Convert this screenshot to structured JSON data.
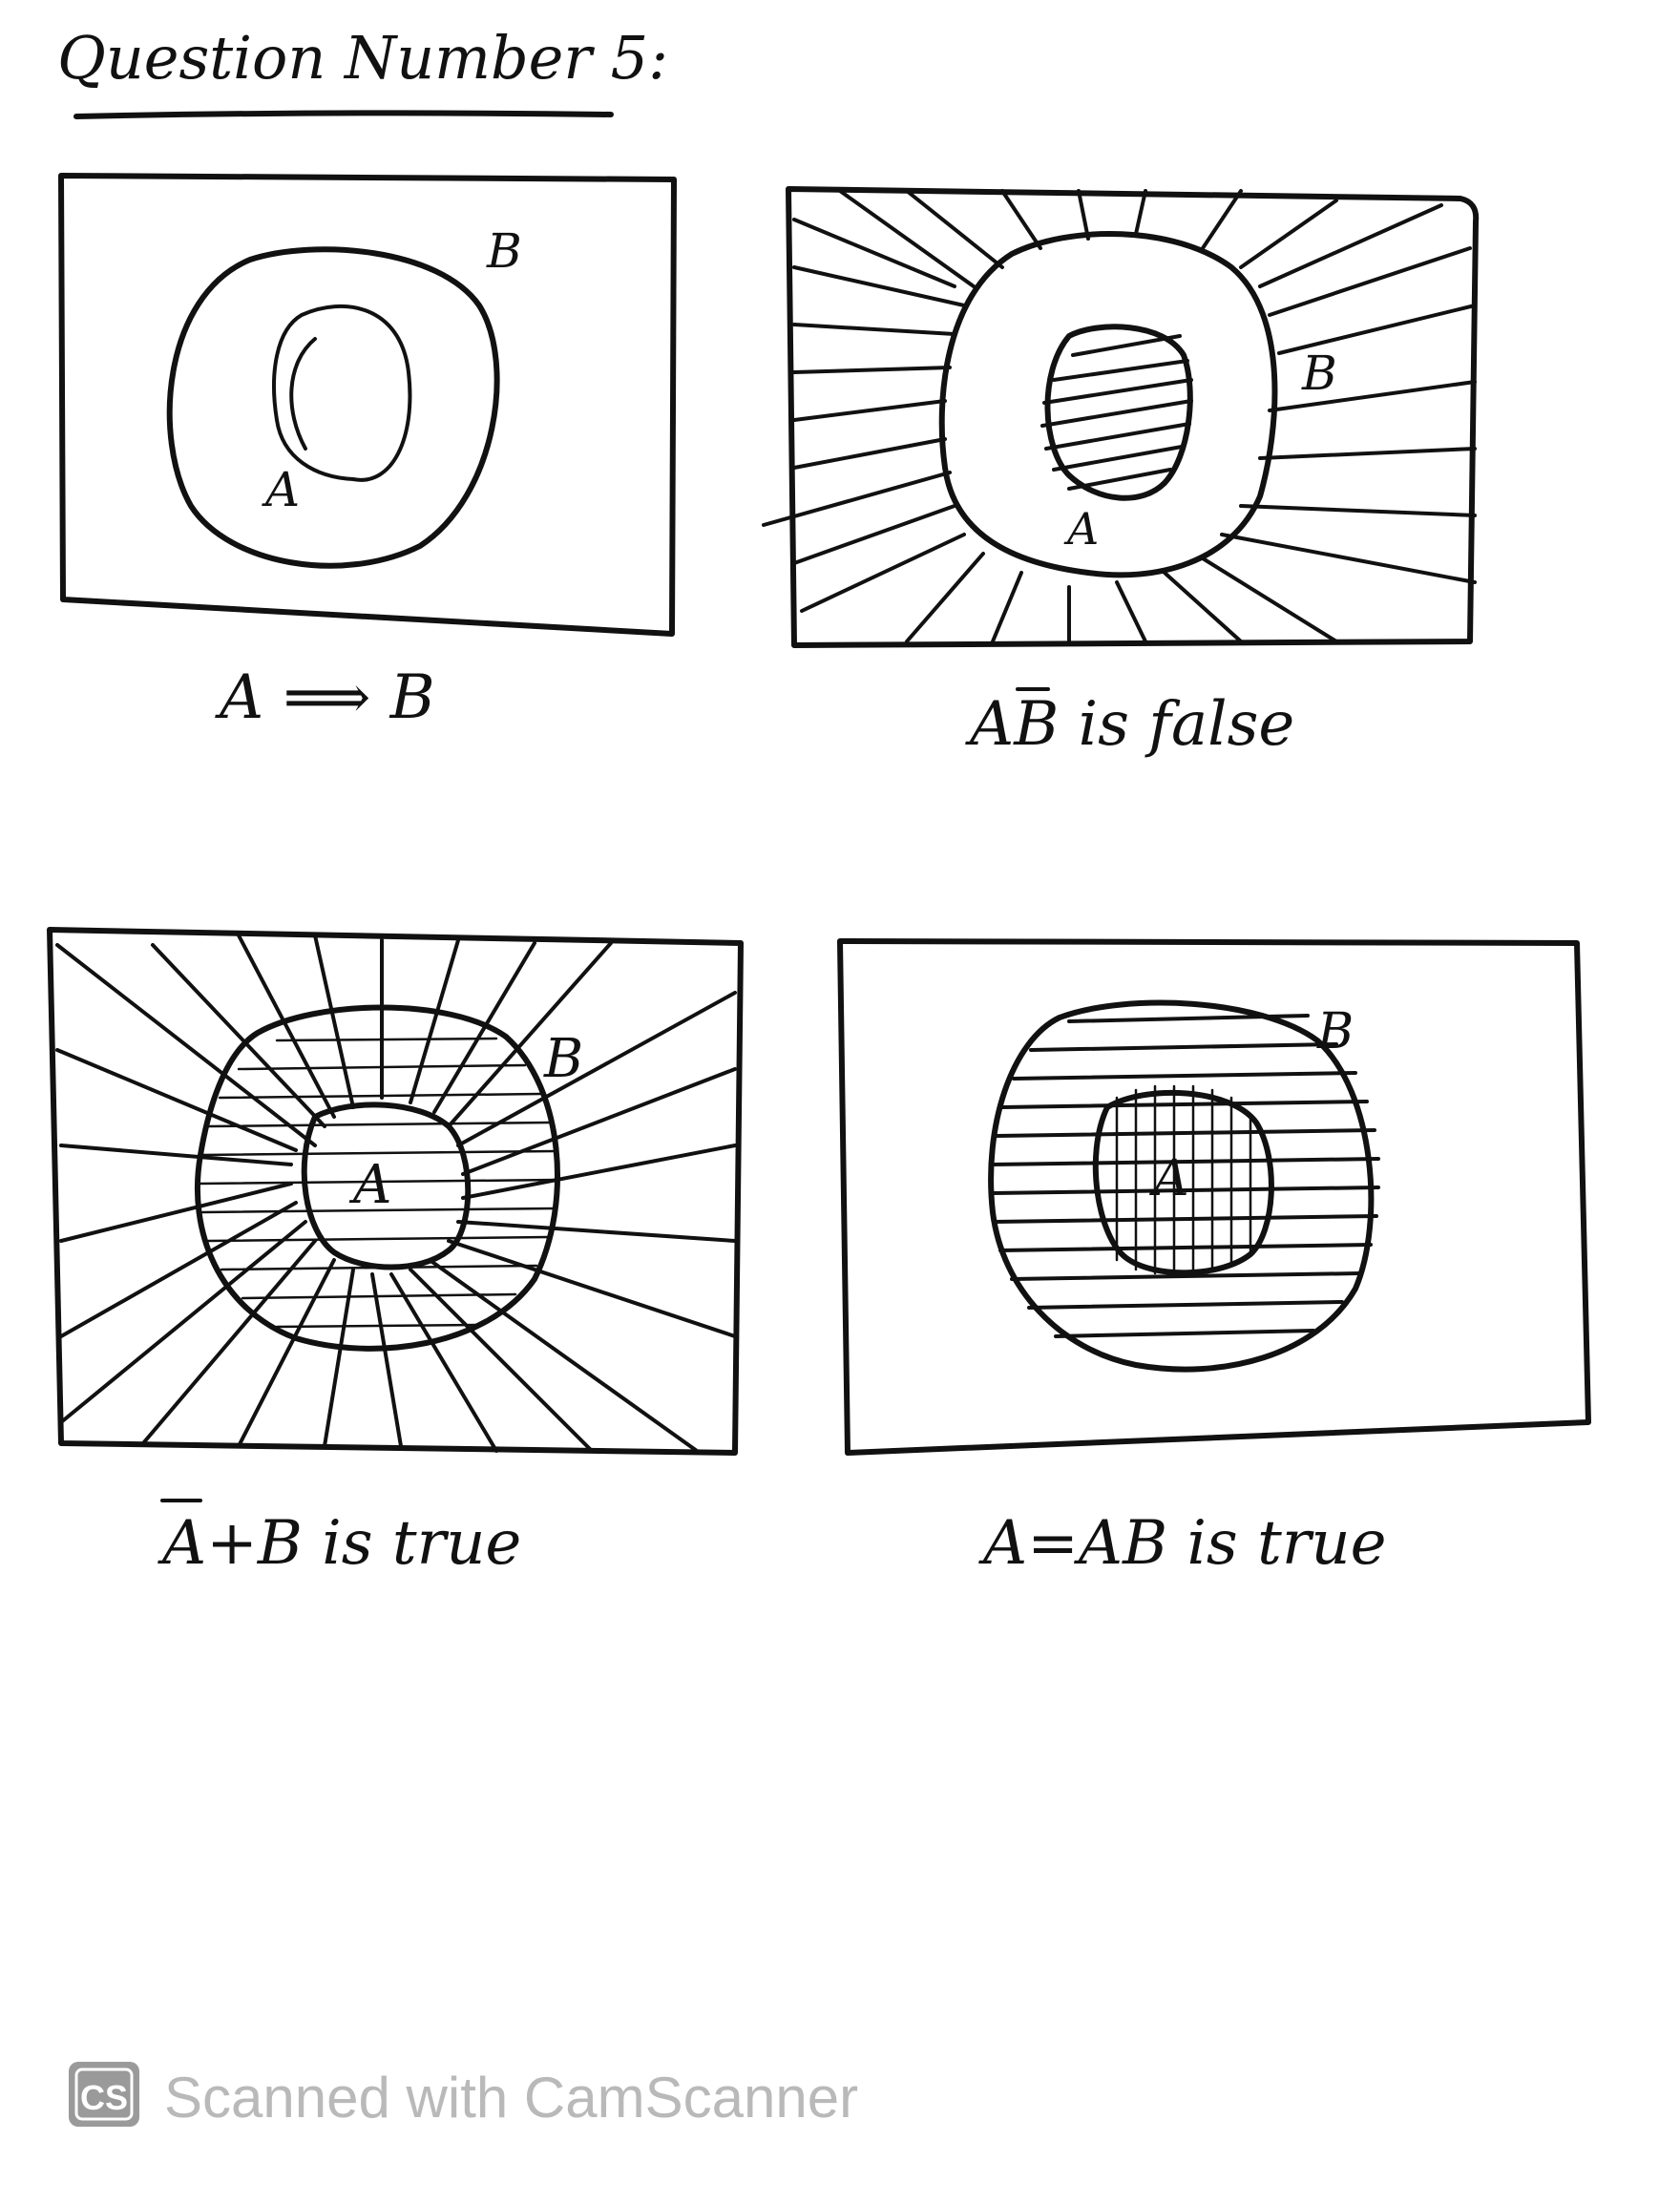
{
  "title": "Question Number 5:",
  "panels": [
    {
      "id": "implies",
      "label_a": "A",
      "label_b": "B",
      "caption": "A ⟹ B"
    },
    {
      "id": "a-not-b-false",
      "label_a": "A",
      "label_b": "B",
      "caption_prefix": "A",
      "caption_bar_letter": "B",
      "caption_suffix": " is false"
    },
    {
      "id": "not-a-plus-b-true",
      "label_a": "A",
      "label_b": "B",
      "caption_bar_letter": "A",
      "caption_suffix": "+B is true"
    },
    {
      "id": "a-equals-ab-true",
      "label_a": "A",
      "label_b": "B",
      "caption": "A=AB is true"
    }
  ],
  "watermark": {
    "logo": "CS",
    "text": "Scanned with CamScanner",
    "colors": {
      "logo_bg": "#9a9a9a",
      "text": "#b9b9b9"
    }
  }
}
